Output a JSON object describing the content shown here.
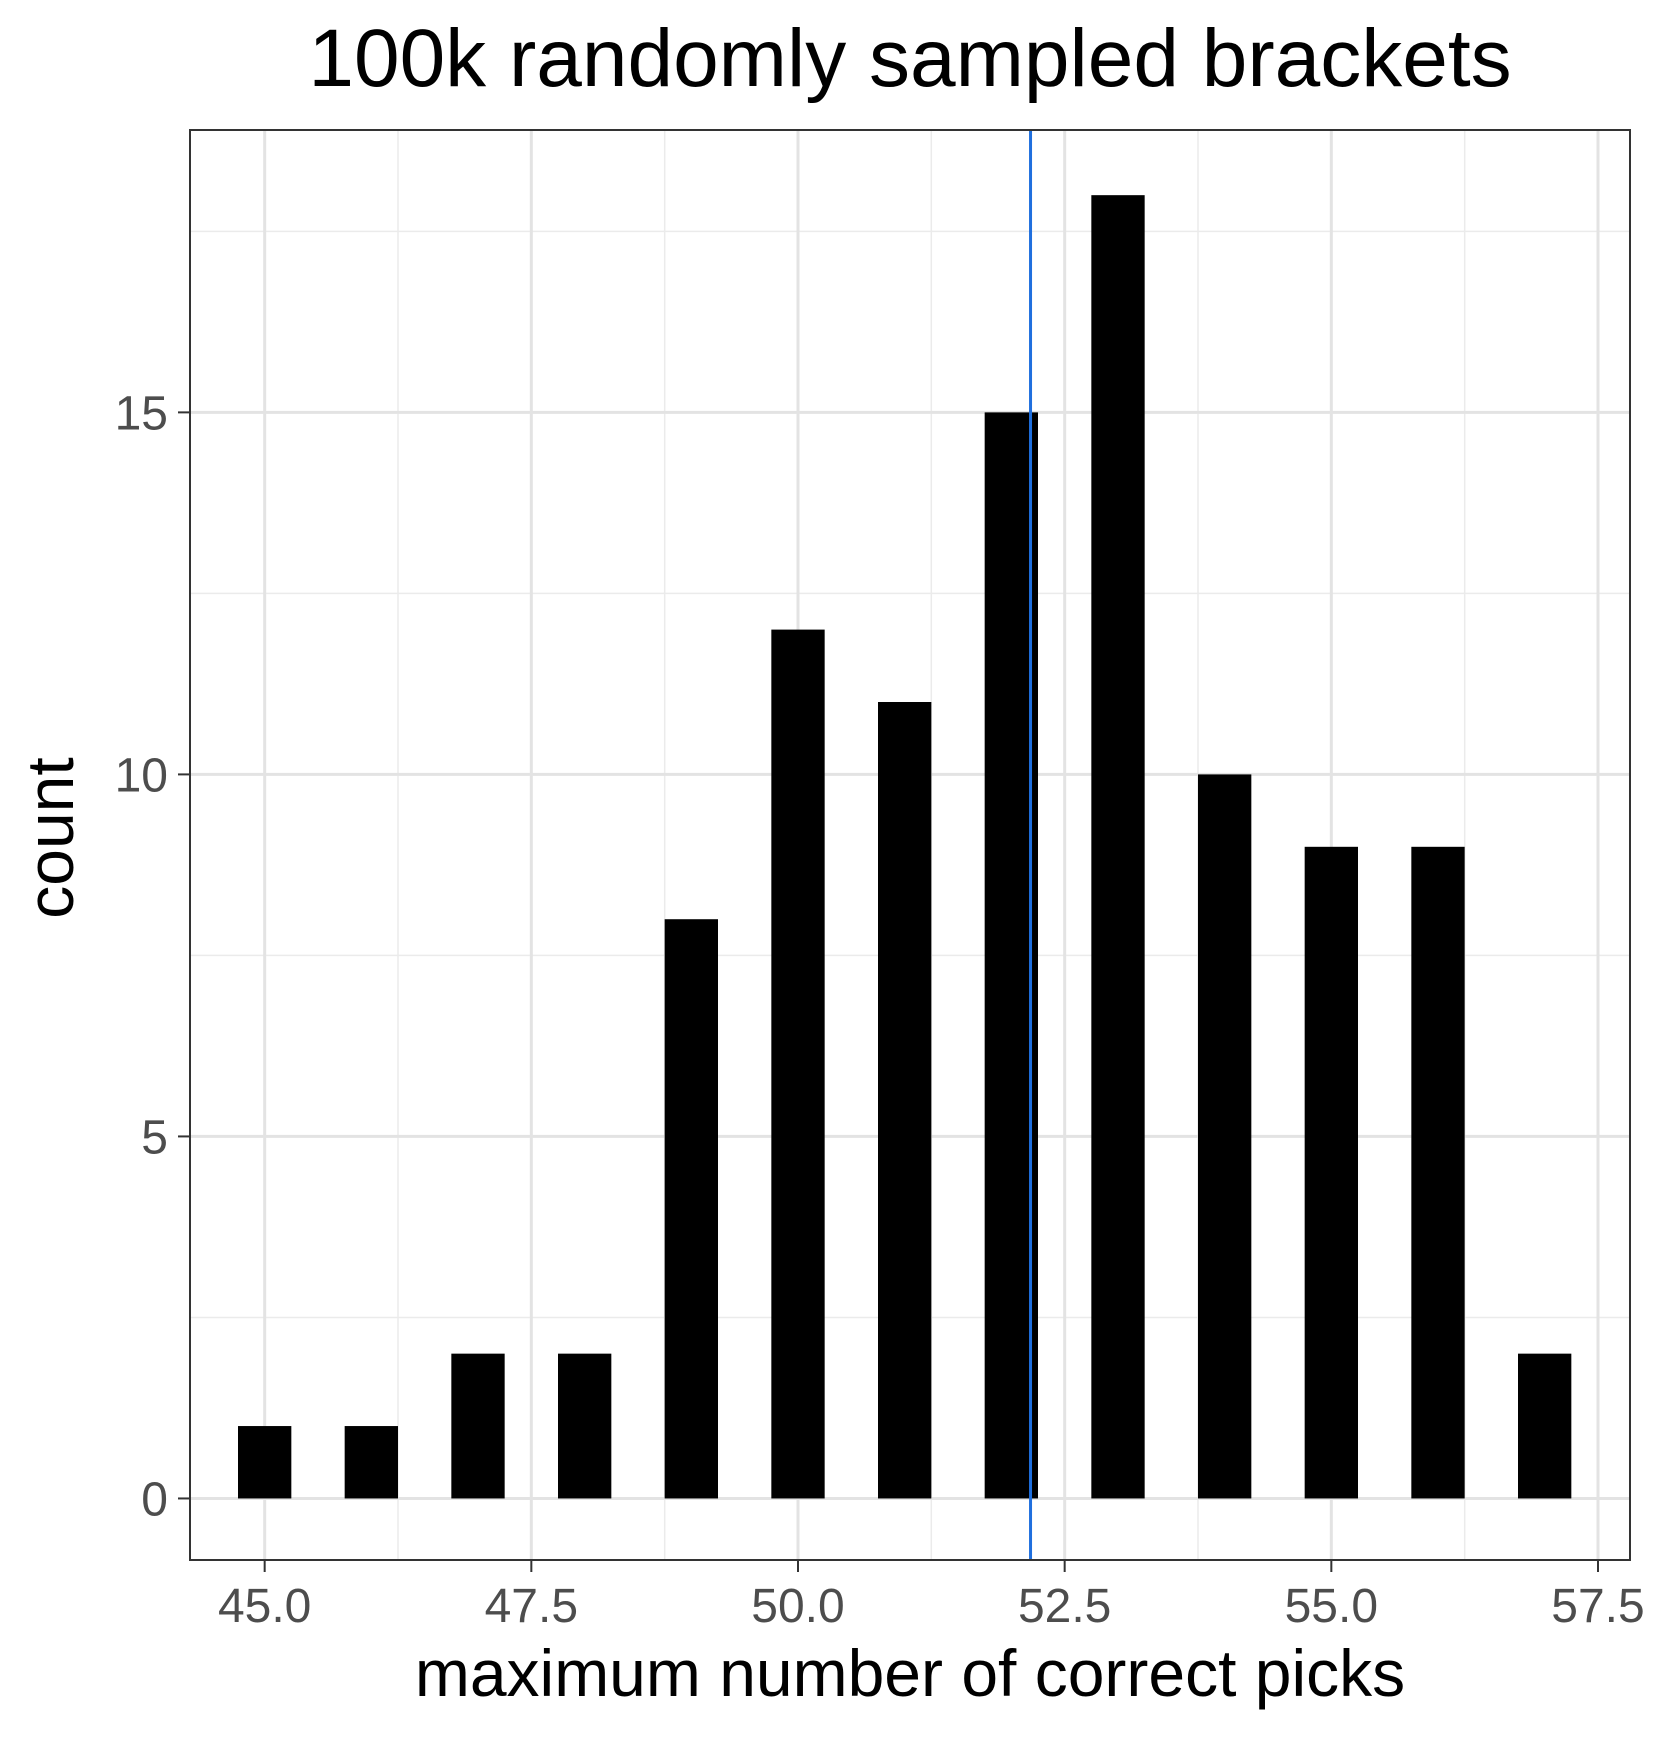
{
  "chart_data": {
    "type": "bar",
    "title": "100k randomly sampled brackets",
    "xlabel": "maximum number of correct picks",
    "ylabel": "count",
    "x": [
      45,
      46,
      47,
      48,
      49,
      50,
      51,
      52,
      53,
      54,
      55,
      56,
      57
    ],
    "values": [
      1,
      1,
      2,
      2,
      8,
      12,
      11,
      15,
      18,
      10,
      9,
      9,
      2
    ],
    "bar_width": 0.5,
    "xlim": [
      44.3,
      57.8
    ],
    "ylim": [
      -0.85,
      18.9
    ],
    "x_ticks": [
      "45.0",
      "47.5",
      "50.0",
      "52.5",
      "55.0",
      "57.5"
    ],
    "y_ticks": [
      "0",
      "5",
      "10",
      "15"
    ],
    "reference_line": {
      "x": 52.18,
      "color": "#1f6fde"
    },
    "bar_color": "#000000",
    "grid": true
  }
}
